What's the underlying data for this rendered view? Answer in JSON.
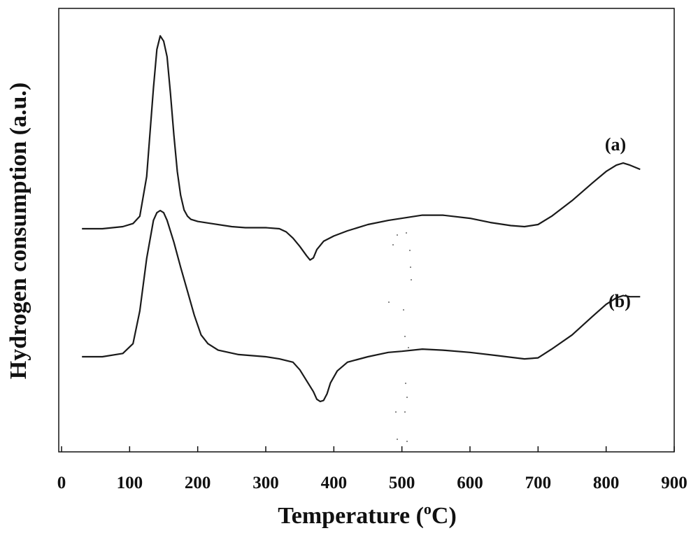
{
  "chart_data": {
    "type": "line",
    "title": "",
    "xlabel": "Temperature (",
    "xlabel_sup": "o",
    "xlabel_end": "C)",
    "ylabel": "Hydrogen consumption (a.u.)",
    "xlim": [
      0,
      900
    ],
    "xticks": [
      0,
      100,
      200,
      300,
      400,
      500,
      600,
      700,
      800,
      900
    ],
    "yticks_shown": false,
    "grid": false,
    "legend": "none",
    "colors": {
      "line": "#1a1a1a",
      "axis": "#111111",
      "background": "#ffffff"
    },
    "series": [
      {
        "name": "(a)",
        "x": [
          30,
          60,
          90,
          105,
          115,
          125,
          135,
          140,
          145,
          150,
          155,
          160,
          165,
          170,
          175,
          180,
          185,
          190,
          200,
          220,
          250,
          270,
          300,
          320,
          330,
          340,
          350,
          360,
          365,
          370,
          375,
          385,
          400,
          420,
          450,
          480,
          500,
          530,
          560,
          600,
          630,
          660,
          680,
          700,
          720,
          750,
          780,
          800,
          815,
          825,
          835,
          850
        ],
        "y": [
          0.0,
          0.0,
          0.02,
          0.05,
          0.12,
          0.5,
          1.35,
          1.72,
          1.85,
          1.8,
          1.65,
          1.3,
          0.9,
          0.55,
          0.32,
          0.18,
          0.12,
          0.09,
          0.07,
          0.05,
          0.02,
          0.01,
          0.01,
          0.0,
          -0.03,
          -0.09,
          -0.17,
          -0.26,
          -0.3,
          -0.28,
          -0.2,
          -0.12,
          -0.07,
          -0.02,
          0.04,
          0.08,
          0.1,
          0.13,
          0.13,
          0.1,
          0.06,
          0.03,
          0.02,
          0.04,
          0.12,
          0.27,
          0.44,
          0.55,
          0.61,
          0.63,
          0.61,
          0.57
        ]
      },
      {
        "name": "(b)",
        "x": [
          30,
          60,
          90,
          105,
          115,
          125,
          135,
          140,
          145,
          150,
          155,
          165,
          175,
          185,
          195,
          205,
          215,
          230,
          260,
          300,
          320,
          340,
          350,
          360,
          370,
          375,
          380,
          385,
          390,
          395,
          405,
          420,
          450,
          480,
          500,
          530,
          560,
          600,
          640,
          680,
          700,
          720,
          750,
          780,
          800,
          815,
          825,
          835,
          850
        ],
        "y": [
          0.0,
          0.0,
          0.03,
          0.12,
          0.42,
          0.9,
          1.25,
          1.32,
          1.34,
          1.32,
          1.25,
          1.05,
          0.82,
          0.6,
          0.38,
          0.2,
          0.12,
          0.06,
          0.02,
          0.0,
          -0.02,
          -0.05,
          -0.12,
          -0.22,
          -0.32,
          -0.39,
          -0.41,
          -0.4,
          -0.34,
          -0.24,
          -0.13,
          -0.05,
          0.0,
          0.04,
          0.05,
          0.07,
          0.06,
          0.04,
          0.01,
          -0.02,
          -0.01,
          0.07,
          0.2,
          0.37,
          0.48,
          0.54,
          0.56,
          0.55,
          0.55
        ]
      }
    ]
  }
}
